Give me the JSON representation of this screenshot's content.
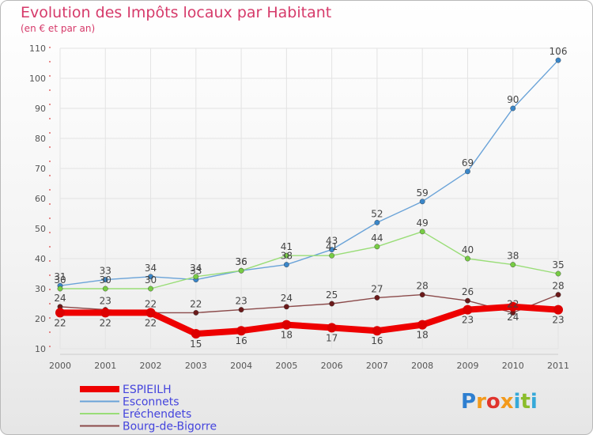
{
  "title": "Evolution des Impôts locaux par Habitant",
  "subtitle": "(en € et par an)",
  "logo": "Proxiti",
  "colors": {
    "title": "#d63a6a",
    "axis": "#dd4444",
    "grid": "#e3e3e3"
  },
  "chart_data": {
    "type": "line",
    "title": "Evolution des Impôts locaux par Habitant",
    "ylabel": "(en € et par an)",
    "xlabel": "",
    "ylim": [
      10,
      110
    ],
    "yticks": [
      10,
      20,
      30,
      40,
      50,
      60,
      70,
      80,
      90,
      100,
      110
    ],
    "categories": [
      "2000",
      "2001",
      "2002",
      "2003",
      "2004",
      "2005",
      "2006",
      "2007",
      "2008",
      "2009",
      "2010",
      "2011"
    ],
    "grid": true,
    "legend_position": "bottom-left",
    "series": [
      {
        "name": "ESPIEILH",
        "color": "#ee0000",
        "markerColor": "#dd0000",
        "thick": true,
        "values": [
          22,
          22,
          22,
          15,
          16,
          18,
          17,
          16,
          18,
          23,
          24,
          23
        ]
      },
      {
        "name": "Esconnets",
        "color": "#6aa3d8",
        "markerColor": "#3a86c8",
        "thick": false,
        "values": [
          31,
          33,
          34,
          33,
          36,
          38,
          43,
          52,
          59,
          69,
          90,
          106
        ]
      },
      {
        "name": "Eréchendets",
        "color": "#99dd77",
        "markerColor": "#77cc44",
        "thick": false,
        "values": [
          30,
          30,
          30,
          34,
          36,
          41,
          41,
          44,
          49,
          40,
          38,
          35
        ]
      },
      {
        "name": "Bourg-de-Bigorre",
        "color": "#8b4a4a",
        "markerColor": "#6b1a1a",
        "thick": false,
        "values": [
          24,
          23,
          22,
          22,
          23,
          24,
          25,
          27,
          28,
          26,
          22,
          28
        ]
      }
    ]
  }
}
